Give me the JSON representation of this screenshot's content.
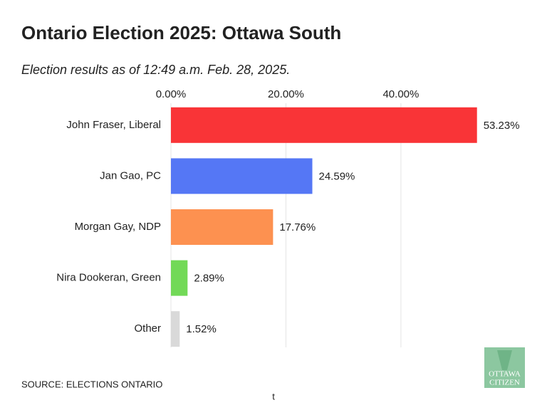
{
  "chart_data": {
    "type": "bar",
    "orientation": "horizontal",
    "title": "Ontario Election 2025: Ottawa South",
    "subtitle": "Election results as of 12:49 a.m. Feb. 28, 2025.",
    "categories": [
      "John Fraser, Liberal",
      "Jan Gao, PC",
      "Morgan Gay, NDP",
      "Nira Dookeran, Green",
      "Other"
    ],
    "values": [
      53.23,
      24.59,
      17.76,
      2.89,
      1.52
    ],
    "value_labels": [
      "53.23%",
      "24.59%",
      "17.76%",
      "2.89%",
      "1.52%"
    ],
    "colors": [
      "#f93437",
      "#5577f5",
      "#fd9150",
      "#72d957",
      "#d9d9d9"
    ],
    "xlim": [
      0,
      55
    ],
    "xticks": [
      {
        "value": 0,
        "label": "0.00%"
      },
      {
        "value": 20,
        "label": "20.00%"
      },
      {
        "value": 40,
        "label": "40.00%"
      }
    ],
    "grid": true,
    "source": "SOURCE: ELECTIONS ONTARIO",
    "footer_mark": "t",
    "logo": [
      "OTTAWA",
      "CITIZEN"
    ]
  }
}
